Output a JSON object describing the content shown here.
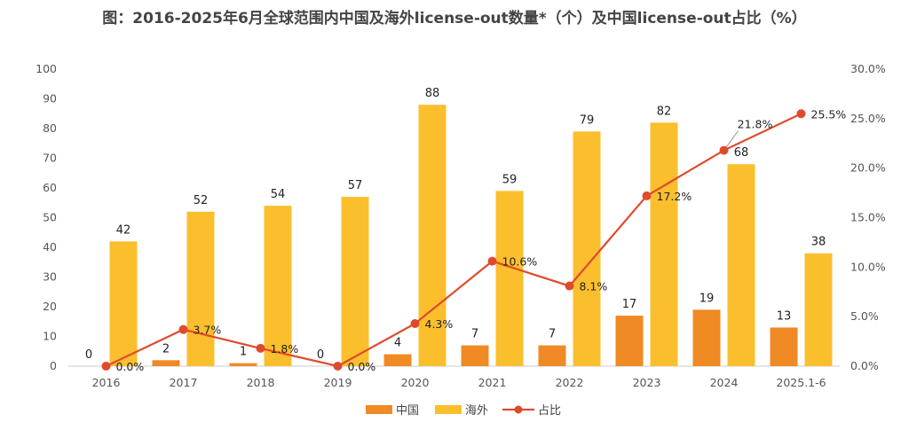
{
  "chart_data": {
    "type": "bar",
    "title": "图：2016-2025年6月全球范围内中国及海外license-out数量*（个）及中国license-out占比（%）",
    "categories": [
      "2016",
      "2017",
      "2018",
      "2019",
      "2020",
      "2021",
      "2022",
      "2023",
      "2024",
      "2025.1-6"
    ],
    "series": [
      {
        "name": "中国",
        "type": "bar",
        "axis": "left",
        "color": "#F08A24",
        "values": [
          0,
          2,
          1,
          0,
          4,
          7,
          7,
          17,
          19,
          13
        ],
        "labels": [
          "0",
          "2",
          "1",
          "0",
          "4",
          "7",
          "7",
          "17",
          "19",
          "13"
        ]
      },
      {
        "name": "海外",
        "type": "bar",
        "axis": "left",
        "color": "#FBBF2E",
        "values": [
          42,
          52,
          54,
          57,
          88,
          59,
          79,
          82,
          68,
          38
        ],
        "labels": [
          "42",
          "52",
          "54",
          "57",
          "88",
          "59",
          "79",
          "82",
          "68",
          "38"
        ]
      },
      {
        "name": "占比",
        "type": "line",
        "axis": "right",
        "color": "#E04A2C",
        "values": [
          0.0,
          3.7,
          1.8,
          0.0,
          4.3,
          10.6,
          8.1,
          17.2,
          21.8,
          25.5
        ],
        "labels": [
          "0.0%",
          "3.7%",
          "1.8%",
          "0.0%",
          "4.3%",
          "10.6%",
          "8.1%",
          "17.2%",
          "21.8%",
          "25.5%"
        ]
      }
    ],
    "y_left": {
      "min": 0,
      "max": 100,
      "ticks": [
        "0",
        "10",
        "20",
        "30",
        "40",
        "50",
        "60",
        "70",
        "80",
        "90",
        "100"
      ]
    },
    "y_right": {
      "min": 0,
      "max": 30,
      "ticks": [
        "0.0%",
        "5.0%",
        "10.0%",
        "15.0%",
        "20.0%",
        "25.0%",
        "30.0%"
      ]
    },
    "grid": false,
    "legend": "bottom"
  }
}
